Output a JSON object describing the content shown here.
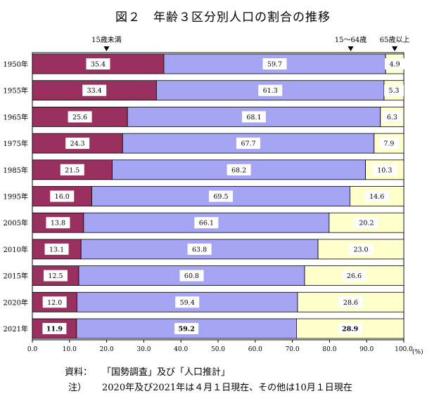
{
  "chart_data": {
    "type": "bar",
    "stacked": true,
    "orientation": "horizontal",
    "title": "図２　年齢３区分別人口の割合の推移",
    "categories": [
      "1950年",
      "1955年",
      "1965年",
      "1975年",
      "1985年",
      "1995年",
      "2005年",
      "2010年",
      "2015年",
      "2020年",
      "2021年"
    ],
    "series": [
      {
        "name": "15歳未満",
        "color": "#9a3060",
        "values": [
          35.4,
          33.4,
          25.6,
          24.3,
          21.5,
          16.0,
          13.8,
          13.1,
          12.5,
          12.0,
          11.9
        ]
      },
      {
        "name": "15～64歳",
        "color": "#a5a5f4",
        "values": [
          59.7,
          61.3,
          68.1,
          67.7,
          68.2,
          69.5,
          66.1,
          63.8,
          60.8,
          59.4,
          59.2
        ]
      },
      {
        "name": "65歳以上",
        "color": "#ffffcc",
        "values": [
          4.9,
          5.3,
          6.3,
          7.9,
          10.3,
          14.6,
          20.2,
          23.0,
          26.6,
          28.6,
          28.9
        ]
      }
    ],
    "value_labels": [
      [
        "35.4",
        "59.7",
        "4.9"
      ],
      [
        "33.4",
        "61.3",
        "5.3"
      ],
      [
        "25.6",
        "68.1",
        "6.3"
      ],
      [
        "24.3",
        "67.7",
        "7.9"
      ],
      [
        "21.5",
        "68.2",
        "10.3"
      ],
      [
        "16.0",
        "69.5",
        "14.6"
      ],
      [
        "13.8",
        "66.1",
        "20.2"
      ],
      [
        "13.1",
        "63.8",
        "23.0"
      ],
      [
        "12.5",
        "60.8",
        "26.6"
      ],
      [
        "12.0",
        "59.4",
        "28.6"
      ],
      [
        "11.9",
        "59.2",
        "28.9"
      ]
    ],
    "bold_rows": [
      10
    ],
    "xlim": [
      0,
      100
    ],
    "xticks": [
      "0.0",
      "10.0",
      "20.0",
      "30.0",
      "40.0",
      "50.0",
      "60.0",
      "70.0",
      "80.0",
      "90.0",
      "100.0"
    ],
    "xunit": "(%)",
    "xlabel": "",
    "ylabel": "",
    "legend": "top",
    "grid": false
  },
  "notes": {
    "source_label": "資料：",
    "source_text": "「国勢調査」及び「人口推計」",
    "remark_label": "注）",
    "remark_text": "2020年及び2021年は４月１日現在、その他は10月１日現在"
  }
}
